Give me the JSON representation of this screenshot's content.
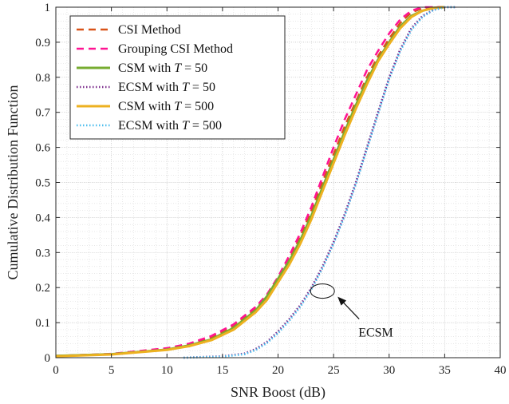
{
  "chart_data": {
    "type": "line",
    "title": "",
    "xlabel": "SNR Boost (dB)",
    "ylabel": "Cumulative Distribution Function",
    "xlim": [
      0,
      40
    ],
    "ylim": [
      0,
      1
    ],
    "xticks": [
      0,
      5,
      10,
      15,
      20,
      25,
      30,
      35,
      40
    ],
    "yticks": [
      0,
      0.1,
      0.2,
      0.3,
      0.4,
      0.5,
      0.6,
      0.7,
      0.8,
      0.9,
      1
    ],
    "xtick_labels": [
      "0",
      "5",
      "10",
      "15",
      "20",
      "25",
      "30",
      "35",
      "40"
    ],
    "ytick_labels": [
      "0",
      "0.1",
      "0.2",
      "0.3",
      "0.4",
      "0.5",
      "0.6",
      "0.7",
      "0.8",
      "0.9",
      "1"
    ],
    "grid": true,
    "legend_position": "top-left",
    "series": [
      {
        "name": "CSI Method",
        "style": "dashed",
        "color": "#d95319",
        "x": [
          0,
          5,
          10,
          12,
          14,
          16,
          18,
          19,
          20,
          21,
          22,
          23,
          24,
          25,
          26,
          27,
          28,
          29,
          30,
          31,
          32,
          33,
          34,
          35
        ],
        "y": [
          0.005,
          0.01,
          0.025,
          0.038,
          0.058,
          0.09,
          0.14,
          0.175,
          0.225,
          0.28,
          0.345,
          0.42,
          0.5,
          0.58,
          0.66,
          0.73,
          0.8,
          0.86,
          0.91,
          0.955,
          0.985,
          0.997,
          1,
          1
        ]
      },
      {
        "name": "Grouping CSI Method",
        "style": "dashed",
        "color": "#ff1493",
        "x": [
          0,
          5,
          10,
          12,
          14,
          16,
          18,
          19,
          20,
          21,
          22,
          23,
          24,
          25,
          26,
          27,
          28,
          29,
          30,
          31,
          32,
          33,
          34,
          35
        ],
        "y": [
          0.005,
          0.011,
          0.027,
          0.04,
          0.062,
          0.095,
          0.145,
          0.18,
          0.23,
          0.29,
          0.355,
          0.43,
          0.515,
          0.6,
          0.68,
          0.75,
          0.82,
          0.875,
          0.925,
          0.965,
          0.99,
          1,
          1,
          1
        ]
      },
      {
        "name": "CSM with T = 50",
        "name_prefix": "CSM with",
        "name_math": "T = 50",
        "style": "solid",
        "color": "#77ac30",
        "x": [
          0,
          5,
          10,
          12,
          14,
          16,
          18,
          19,
          20,
          21,
          22,
          23,
          24,
          25,
          26,
          27,
          28,
          29,
          30,
          31,
          32,
          33,
          34,
          35
        ],
        "y": [
          0.005,
          0.01,
          0.023,
          0.035,
          0.052,
          0.085,
          0.135,
          0.175,
          0.225,
          0.275,
          0.335,
          0.405,
          0.485,
          0.565,
          0.645,
          0.72,
          0.79,
          0.85,
          0.9,
          0.945,
          0.975,
          0.99,
          0.998,
          1
        ]
      },
      {
        "name": "ECSM with T = 50",
        "name_prefix": "ECSM with",
        "name_math": "T = 50",
        "style": "dotted",
        "color": "#7e2f8e",
        "x": [
          11.5,
          15,
          17,
          18,
          19,
          20,
          21,
          22,
          23,
          24,
          25,
          26,
          27,
          28,
          29,
          30,
          31,
          32,
          33,
          34,
          35,
          36
        ],
        "y": [
          0,
          0.004,
          0.012,
          0.025,
          0.045,
          0.075,
          0.11,
          0.15,
          0.2,
          0.26,
          0.33,
          0.41,
          0.5,
          0.6,
          0.7,
          0.8,
          0.88,
          0.94,
          0.975,
          0.993,
          1,
          1
        ]
      },
      {
        "name": "CSM with T = 500",
        "name_prefix": "CSM with",
        "name_math": "T = 500",
        "style": "solid",
        "color": "#edb120",
        "x": [
          0,
          5,
          10,
          12,
          14,
          16,
          18,
          19,
          20,
          21,
          22,
          23,
          24,
          25,
          26,
          27,
          28,
          29,
          30,
          31,
          32,
          33,
          34,
          35
        ],
        "y": [
          0.004,
          0.009,
          0.022,
          0.033,
          0.05,
          0.08,
          0.13,
          0.165,
          0.215,
          0.265,
          0.325,
          0.395,
          0.475,
          0.555,
          0.635,
          0.71,
          0.78,
          0.845,
          0.895,
          0.94,
          0.972,
          0.99,
          0.998,
          1
        ]
      },
      {
        "name": "ECSM with T = 500",
        "name_prefix": "ECSM with",
        "name_math": "T = 500",
        "style": "dotted",
        "color": "#4dbeee",
        "x": [
          11.5,
          15,
          17,
          18,
          19,
          20,
          21,
          22,
          23,
          24,
          25,
          26,
          27,
          28,
          29,
          30,
          31,
          32,
          33,
          34,
          35,
          36
        ],
        "y": [
          0,
          0.003,
          0.01,
          0.022,
          0.042,
          0.07,
          0.105,
          0.145,
          0.195,
          0.255,
          0.325,
          0.405,
          0.495,
          0.595,
          0.695,
          0.795,
          0.875,
          0.935,
          0.972,
          0.992,
          1,
          1
        ]
      }
    ],
    "annotations": [
      {
        "text": "ECSM",
        "target_x": 24,
        "target_y": 0.19
      }
    ]
  }
}
